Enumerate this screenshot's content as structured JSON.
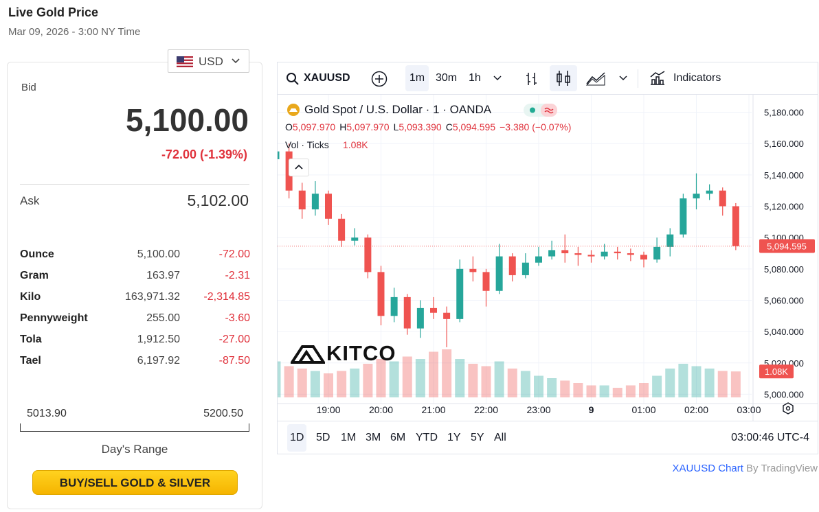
{
  "header": {
    "title": "Live Gold Price",
    "date": "Mar 09, 2026 - 3:00 NY Time"
  },
  "currency": "USD",
  "quote": {
    "bid_label": "Bid",
    "bid": "5,100.00",
    "change": "-72.00 (-1.39%)",
    "ask_label": "Ask",
    "ask": "5,102.00"
  },
  "table": {
    "rows": [
      [
        "Ounce",
        "5,100.00",
        "-72.00"
      ],
      [
        "Gram",
        "163.97",
        "-2.31"
      ],
      [
        "Kilo",
        "163,971.32",
        "-2,314.85"
      ],
      [
        "Pennyweight",
        "255.00",
        "-3.60"
      ],
      [
        "Tola",
        "1,912.50",
        "-27.00"
      ],
      [
        "Tael",
        "6,197.92",
        "-87.50"
      ]
    ]
  },
  "range": {
    "low": "5013.90",
    "high": "5200.50",
    "label": "Day's Range"
  },
  "button": "BUY/SELL GOLD & SILVER",
  "toolbar": {
    "symbol": "XAUUSD",
    "intervals": [
      "1m",
      "30m",
      "1h"
    ],
    "indicators": "Indicators"
  },
  "legend": {
    "title": "Gold Spot / U.S. Dollar · 1 · OANDA",
    "ohlc": [
      [
        "O",
        "5,097.970"
      ],
      [
        "H",
        "5,097.970"
      ],
      [
        "L",
        "5,093.390"
      ],
      [
        "C",
        "5,094.595"
      ]
    ],
    "change": "−3.380 (−0.07%)",
    "volume_title": "Vol · Ticks",
    "volume": "1.08K"
  },
  "logo": "KITCO",
  "chart_data": {
    "type": "candlestick",
    "x": [
      "18:00",
      "18:15",
      "18:30",
      "18:45",
      "19:00",
      "19:15",
      "19:30",
      "19:45",
      "20:00",
      "20:15",
      "20:30",
      "20:45",
      "21:00",
      "21:15",
      "21:30",
      "21:45",
      "22:00",
      "22:15",
      "22:30",
      "22:45",
      "23:00",
      "23:15",
      "23:30",
      "23:45",
      "00:00",
      "00:15",
      "00:30",
      "00:45",
      "01:00",
      "01:15",
      "01:30",
      "01:45",
      "02:00",
      "02:15",
      "02:30",
      "02:45"
    ],
    "open": [
      5150,
      5155,
      5130,
      5118,
      5128,
      5112,
      5098,
      5100,
      5078,
      5050,
      5062,
      5042,
      5055,
      5052,
      5048,
      5080,
      5078,
      5066,
      5088,
      5076,
      5084,
      5088,
      5092,
      5090,
      5089,
      5088,
      5091,
      5090,
      5089,
      5086,
      5094,
      5102,
      5125,
      5128,
      5130,
      5120
    ],
    "high": [
      5168,
      5160,
      5135,
      5136,
      5130,
      5115,
      5106,
      5102,
      5082,
      5068,
      5064,
      5060,
      5062,
      5056,
      5086,
      5088,
      5080,
      5096,
      5090,
      5090,
      5094,
      5098,
      5102,
      5094,
      5092,
      5096,
      5094,
      5093,
      5091,
      5100,
      5106,
      5128,
      5141,
      5134,
      5132,
      5122
    ],
    "low": [
      5140,
      5125,
      5112,
      5114,
      5108,
      5094,
      5095,
      5074,
      5044,
      5046,
      5038,
      5036,
      5048,
      5030,
      5046,
      5072,
      5056,
      5064,
      5072,
      5074,
      5082,
      5086,
      5084,
      5082,
      5084,
      5086,
      5086,
      5085,
      5081,
      5084,
      5088,
      5100,
      5118,
      5124,
      5114,
      5092
    ],
    "close": [
      5155,
      5130,
      5118,
      5128,
      5112,
      5098,
      5100,
      5078,
      5050,
      5062,
      5042,
      5055,
      5052,
      5048,
      5080,
      5078,
      5066,
      5088,
      5076,
      5084,
      5088,
      5092,
      5090,
      5089,
      5088,
      5091,
      5090,
      5089,
      5086,
      5094,
      5102,
      5125,
      5128,
      5130,
      5120,
      5094.595
    ],
    "volume": [
      1500,
      1300,
      1200,
      1100,
      1000,
      1100,
      1200,
      1400,
      1600,
      1500,
      1700,
      1600,
      1900,
      2000,
      1600,
      1400,
      1300,
      1500,
      1200,
      1100,
      900,
      800,
      700,
      600,
      500,
      500,
      400,
      500,
      600,
      900,
      1200,
      1400,
      1300,
      1200,
      1100,
      1080
    ],
    "up_color": "#26a69a",
    "down_color": "#ef5350",
    "ylim": [
      4998,
      5189
    ],
    "yticks": [
      {
        "value": 5000,
        "label": "5,000.000"
      },
      {
        "value": 5020,
        "label": "5,020.000"
      },
      {
        "value": 5040,
        "label": "5,040.000"
      },
      {
        "value": 5060,
        "label": "5,060.000"
      },
      {
        "value": 5080,
        "label": "5,080.000"
      },
      {
        "value": 5100,
        "label": "5,100.000"
      },
      {
        "value": 5120,
        "label": "5,120.000"
      },
      {
        "value": 5140,
        "label": "5,140.000"
      },
      {
        "value": 5160,
        "label": "5,160.000"
      },
      {
        "value": 5180,
        "label": "5,180.000"
      }
    ],
    "xticks": [
      "19:00",
      "20:00",
      "21:00",
      "22:00",
      "23:00",
      {
        "value": "00:00",
        "label": "9"
      },
      "01:00",
      "02:00",
      "03:00"
    ],
    "last_price_label": "5,094.595",
    "grid": true
  },
  "ranges": [
    "1D",
    "5D",
    "1M",
    "3M",
    "6M",
    "YTD",
    "1Y",
    "5Y",
    "All"
  ],
  "clock": "03:00:46 UTC-4",
  "footer": {
    "link": "XAUUSD Chart",
    "by": "By TradingView"
  }
}
